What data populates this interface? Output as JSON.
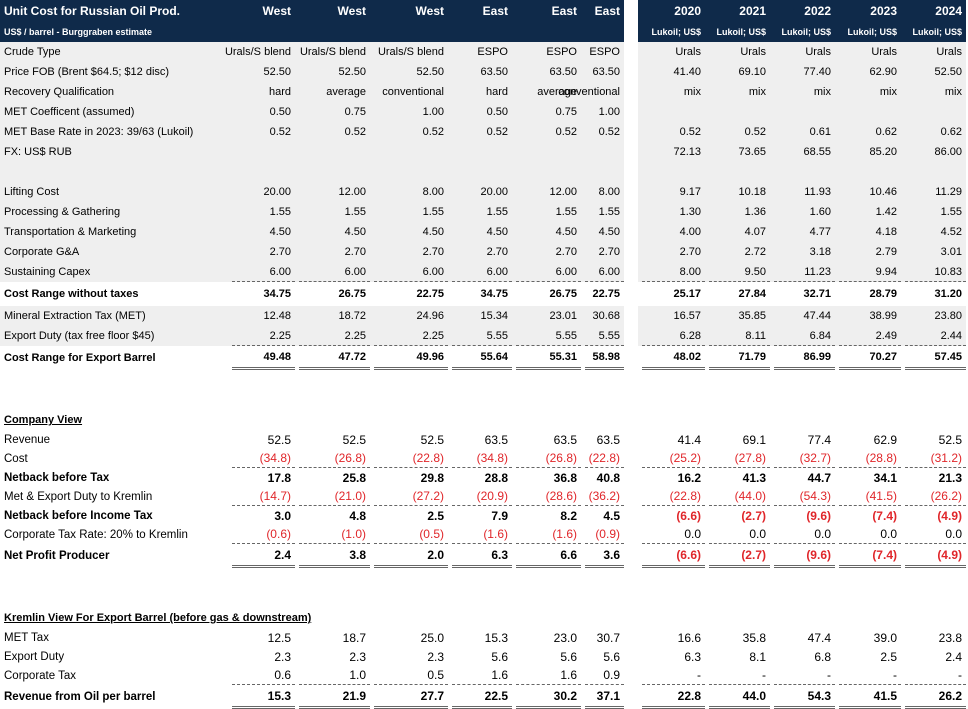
{
  "header": {
    "title": "Unit Cost for Russian Oil Prod.",
    "subtitle": "US$ / barrel - Burggraben estimate",
    "left_columns": [
      "West",
      "West",
      "West",
      "East",
      "East",
      "East"
    ],
    "years": [
      "2020",
      "2021",
      "2022",
      "2023",
      "2024"
    ],
    "year_sub": [
      "Lukoil; US$",
      "Lukoil; US$",
      "Lukoil; US$",
      "Lukoil; US$",
      "Lukoil; US$"
    ]
  },
  "colors": {
    "header_navy": "#0f2a4a",
    "shade_gray": "#efefef",
    "negative_red": "#e0262a"
  },
  "rows": [
    {
      "label": "Crude Type",
      "values": [
        "Urals/S blend",
        "Urals/S blend",
        "Urals/S blend",
        "ESPO",
        "ESPO",
        "ESPO",
        "Urals",
        "Urals",
        "Urals",
        "Urals",
        "Urals"
      ],
      "shade": true
    },
    {
      "label": "Price FOB (Brent $64.5; $12 disc)",
      "values": [
        "52.50",
        "52.50",
        "52.50",
        "63.50",
        "63.50",
        "63.50",
        "41.40",
        "69.10",
        "77.40",
        "62.90",
        "52.50"
      ],
      "shade": true
    },
    {
      "label": "Recovery Qualification",
      "values": [
        "hard",
        "average",
        "conventional",
        "hard",
        "average",
        "conventional",
        "mix",
        "mix",
        "mix",
        "mix",
        "mix"
      ],
      "shade": true
    },
    {
      "label": "MET Coefficent (assumed)",
      "values": [
        "0.50",
        "0.75",
        "1.00",
        "0.50",
        "0.75",
        "1.00",
        "",
        "",
        "",
        "",
        ""
      ],
      "shade": true
    },
    {
      "label": "MET Base Rate in 2023: 39/63 (Lukoil)",
      "values": [
        "0.52",
        "0.52",
        "0.52",
        "0.52",
        "0.52",
        "0.52",
        "0.52",
        "0.52",
        "0.61",
        "0.62",
        "0.62"
      ],
      "shade": true
    },
    {
      "label": "FX: US$ RUB",
      "values": [
        "",
        "",
        "",
        "",
        "",
        "",
        "72.13",
        "73.65",
        "68.55",
        "85.20",
        "86.00"
      ],
      "shade": true
    },
    {
      "label": "",
      "values": [
        "",
        "",
        "",
        "",
        "",
        "",
        "",
        "",
        "",
        "",
        ""
      ],
      "shade": true
    },
    {
      "label": "Lifting Cost",
      "values": [
        "20.00",
        "12.00",
        "8.00",
        "20.00",
        "12.00",
        "8.00",
        "9.17",
        "10.18",
        "11.93",
        "10.46",
        "11.29"
      ],
      "shade": true
    },
    {
      "label": "Processing & Gathering",
      "values": [
        "1.55",
        "1.55",
        "1.55",
        "1.55",
        "1.55",
        "1.55",
        "1.30",
        "1.36",
        "1.60",
        "1.42",
        "1.55"
      ],
      "shade": true
    },
    {
      "label": "Transportation & Marketing",
      "values": [
        "4.50",
        "4.50",
        "4.50",
        "4.50",
        "4.50",
        "4.50",
        "4.00",
        "4.07",
        "4.77",
        "4.18",
        "4.52"
      ],
      "shade": true
    },
    {
      "label": "Corporate G&A",
      "values": [
        "2.70",
        "2.70",
        "2.70",
        "2.70",
        "2.70",
        "2.70",
        "2.70",
        "2.72",
        "3.18",
        "2.79",
        "3.01"
      ],
      "shade": true
    },
    {
      "label": "Sustaining Capex",
      "values": [
        "6.00",
        "6.00",
        "6.00",
        "6.00",
        "6.00",
        "6.00",
        "8.00",
        "9.50",
        "11.23",
        "9.94",
        "10.83"
      ],
      "shade": true,
      "border": "dashed"
    },
    {
      "label": "Cost Range without taxes",
      "values": [
        "34.75",
        "26.75",
        "22.75",
        "34.75",
        "26.75",
        "22.75",
        "25.17",
        "27.84",
        "32.71",
        "28.79",
        "31.20"
      ],
      "bold": true,
      "tall": true
    },
    {
      "label": "Mineral Extraction Tax (MET)",
      "values": [
        "12.48",
        "18.72",
        "24.96",
        "15.34",
        "23.01",
        "30.68",
        "16.57",
        "35.85",
        "47.44",
        "38.99",
        "23.80"
      ],
      "shade": true
    },
    {
      "label": "Export Duty (tax free floor $45)",
      "values": [
        "2.25",
        "2.25",
        "2.25",
        "5.55",
        "5.55",
        "5.55",
        "6.28",
        "8.11",
        "6.84",
        "2.49",
        "2.44"
      ],
      "shade": true,
      "border": "dashed"
    },
    {
      "label": "Cost Range for Export Barrel",
      "values": [
        "49.48",
        "47.72",
        "49.96",
        "55.64",
        "55.31",
        "58.98",
        "48.02",
        "71.79",
        "86.99",
        "70.27",
        "57.45"
      ],
      "bold": true,
      "tall": true,
      "border": "double"
    },
    {
      "label": "",
      "values": [
        "",
        "",
        "",
        "",
        "",
        "",
        "",
        "",
        "",
        "",
        ""
      ]
    },
    {
      "label": "",
      "values": [
        "",
        "",
        "",
        "",
        "",
        "",
        "",
        "",
        "",
        "",
        ""
      ]
    },
    {
      "label": "Company View",
      "values": [
        "",
        "",
        "",
        "",
        "",
        "",
        "",
        "",
        "",
        "",
        ""
      ],
      "bold": true,
      "underline": true
    },
    {
      "label": "Revenue",
      "values": [
        "52.5",
        "52.5",
        "52.5",
        "63.5",
        "63.5",
        "63.5",
        "41.4",
        "69.1",
        "77.4",
        "62.9",
        "52.5"
      ],
      "big": true
    },
    {
      "label": "Cost",
      "values": [
        "(34.8)",
        "(26.8)",
        "(22.8)",
        "(34.8)",
        "(26.8)",
        "(22.8)",
        "(25.2)",
        "(27.8)",
        "(32.7)",
        "(28.8)",
        "(31.2)"
      ],
      "big": true,
      "border": "dashed"
    },
    {
      "label": "Netback before Tax",
      "values": [
        "17.8",
        "25.8",
        "29.8",
        "28.8",
        "36.8",
        "40.8",
        "16.2",
        "41.3",
        "44.7",
        "34.1",
        "21.3"
      ],
      "bold": true,
      "big": true
    },
    {
      "label": "Met & Export Duty to Kremlin",
      "values": [
        "(14.7)",
        "(21.0)",
        "(27.2)",
        "(20.9)",
        "(28.6)",
        "(36.2)",
        "(22.8)",
        "(44.0)",
        "(54.3)",
        "(41.5)",
        "(26.2)"
      ],
      "big": true,
      "border": "dashed"
    },
    {
      "label": "Netback before Income Tax",
      "values": [
        "3.0",
        "4.8",
        "2.5",
        "7.9",
        "8.2",
        "4.5",
        "(6.6)",
        "(2.7)",
        "(9.6)",
        "(7.4)",
        "(4.9)"
      ],
      "bold": true,
      "big": true
    },
    {
      "label": "Corporate Tax Rate: 20% to Kremlin",
      "values": [
        "(0.6)",
        "(1.0)",
        "(0.5)",
        "(1.6)",
        "(1.6)",
        "(0.9)",
        "0.0",
        "0.0",
        "0.0",
        "0.0",
        "0.0"
      ],
      "big": true,
      "border": "dashed"
    },
    {
      "label": "Net Profit Producer",
      "values": [
        "2.4",
        "3.8",
        "2.0",
        "6.3",
        "6.6",
        "3.6",
        "(6.6)",
        "(2.7)",
        "(9.6)",
        "(7.4)",
        "(4.9)"
      ],
      "bold": true,
      "big": true,
      "tall": true,
      "border": "double"
    },
    {
      "label": "",
      "values": [
        "",
        "",
        "",
        "",
        "",
        "",
        "",
        "",
        "",
        "",
        ""
      ]
    },
    {
      "label": "",
      "values": [
        "",
        "",
        "",
        "",
        "",
        "",
        "",
        "",
        "",
        "",
        ""
      ]
    },
    {
      "label": "Kremlin View For Export Barrel (before gas & downstream)",
      "values": [
        "",
        "",
        "",
        "",
        "",
        "",
        "",
        "",
        "",
        "",
        ""
      ],
      "bold": true,
      "underline": true
    },
    {
      "label": "MET Tax",
      "values": [
        "12.5",
        "18.7",
        "25.0",
        "15.3",
        "23.0",
        "30.7",
        "16.6",
        "35.8",
        "47.4",
        "39.0",
        "23.8"
      ],
      "big": true
    },
    {
      "label": "Export Duty",
      "values": [
        "2.3",
        "2.3",
        "2.3",
        "5.6",
        "5.6",
        "5.6",
        "6.3",
        "8.1",
        "6.8",
        "2.5",
        "2.4"
      ],
      "big": true
    },
    {
      "label": "Corporate Tax",
      "values": [
        "0.6",
        "1.0",
        "0.5",
        "1.6",
        "1.6",
        "0.9",
        "-",
        "-",
        "-",
        "-",
        "-"
      ],
      "big": true,
      "border": "dashed"
    },
    {
      "label": "Revenue from Oil per barrel",
      "values": [
        "15.3",
        "21.9",
        "27.7",
        "22.5",
        "30.2",
        "37.1",
        "22.8",
        "44.0",
        "54.3",
        "41.5",
        "26.2"
      ],
      "bold": true,
      "big": true,
      "tall": true,
      "border": "double"
    }
  ]
}
